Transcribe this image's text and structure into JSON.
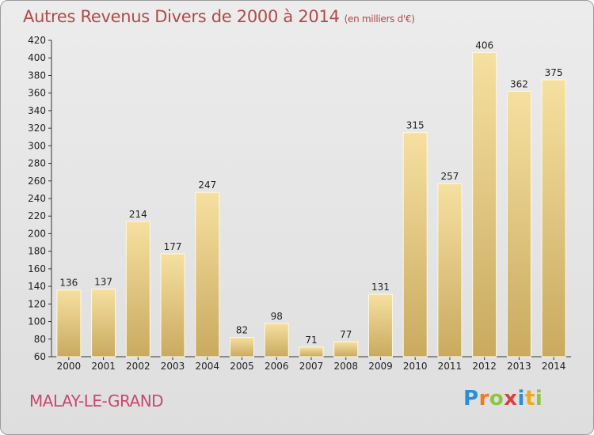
{
  "header": {
    "title": "Autres Revenus Divers de 2000 à 2014",
    "unit": "(en milliers d'€)"
  },
  "footer": {
    "commune": "MALAY-LE-GRAND",
    "logo": {
      "letters": [
        "P",
        "r",
        "o",
        "x",
        "i",
        "t",
        "i"
      ],
      "colors": [
        "#2a8fd6",
        "#f07a1a",
        "#8dc63f",
        "#e23d3d",
        "#2a8fd6",
        "#f0a81a",
        "#8dc63f"
      ]
    }
  },
  "chart_data": {
    "type": "bar",
    "title": "Autres Revenus Divers de 2000 à 2014",
    "subtitle": "(en milliers d'€)",
    "categories": [
      "2000",
      "2001",
      "2002",
      "2003",
      "2004",
      "2005",
      "2006",
      "2007",
      "2008",
      "2009",
      "2010",
      "2011",
      "2012",
      "2013",
      "2014"
    ],
    "values": [
      136,
      137,
      214,
      177,
      247,
      82,
      98,
      71,
      77,
      131,
      315,
      257,
      406,
      362,
      375
    ],
    "ylim": [
      60,
      420
    ],
    "yticks": [
      60,
      80,
      100,
      120,
      140,
      160,
      180,
      200,
      220,
      240,
      260,
      280,
      300,
      320,
      340,
      360,
      380,
      400,
      420
    ],
    "grid": false,
    "bar_color": "#e8cc7e"
  }
}
